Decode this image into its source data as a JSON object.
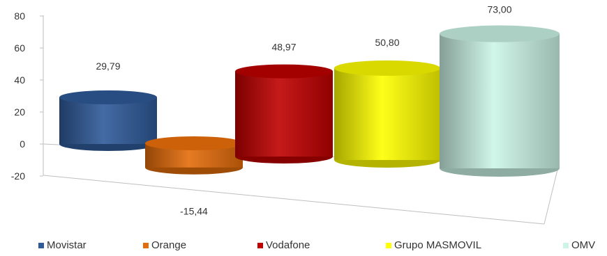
{
  "chart_data": {
    "type": "bar",
    "style": "3d-cylinder",
    "categories": [
      "Movistar",
      "Orange",
      "Vodafone",
      "Grupo MASMOVIL",
      "OMV"
    ],
    "values": [
      29.79,
      -15.44,
      48.97,
      50.8,
      73.0
    ],
    "value_labels": [
      "29,79",
      "-15,44",
      "48,97",
      "50,80",
      "73,00"
    ],
    "colors": [
      "#2f5b9a",
      "#e36c0a",
      "#c00000",
      "#ffff00",
      "#ccf5e8"
    ],
    "y_ticks": [
      "80",
      "60",
      "40",
      "20",
      "0",
      "-20"
    ],
    "ylim": [
      -20,
      80
    ],
    "grid": false,
    "legend_position": "bottom",
    "title": "",
    "xlabel": "",
    "ylabel": ""
  }
}
